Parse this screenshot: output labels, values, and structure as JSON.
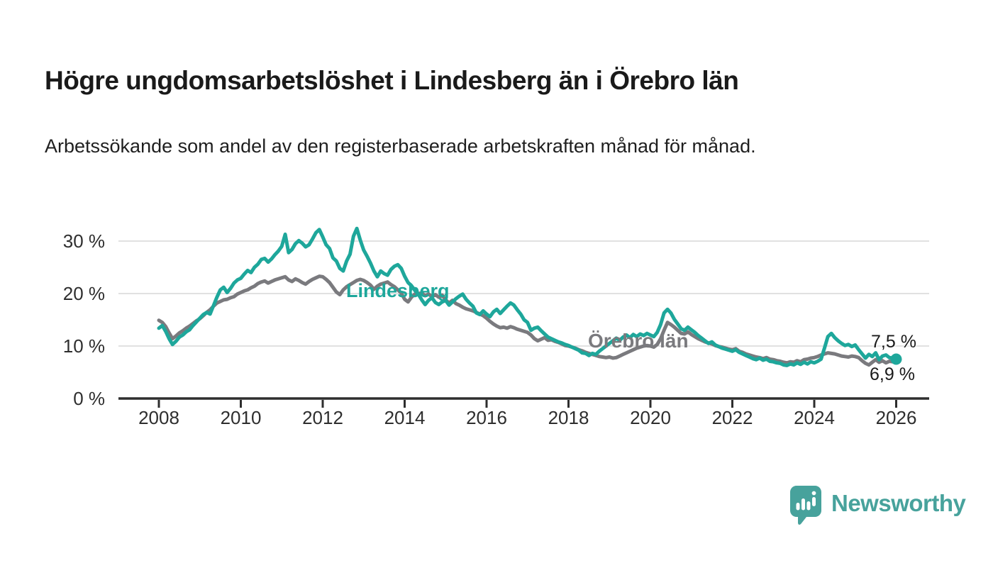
{
  "header": {
    "title": "Högre ungdomsarbetslöshet i Lindesberg än i Örebro län",
    "subtitle": "Arbetssökande som andel av den registerbaserade arbetskraften månad för månad."
  },
  "branding": {
    "name": "Newsworthy",
    "color": "#47a29c",
    "logo_icon": "speech-bubble-bar-chart"
  },
  "colors": {
    "lindesberg": "#1ea79b",
    "orebro": "#7a7a7e",
    "axis": "#2e2e2e",
    "grid": "#d7d7d7",
    "text": "#1a1a1a"
  },
  "chart_data": {
    "type": "line",
    "title": "Högre ungdomsarbetslöshet i Lindesberg än i Örebro län",
    "subtitle": "Arbetssökande som andel av den registerbaserade arbetskraften månad för månad.",
    "x_unit": "monthly, decimal years",
    "x_start": 2008.0,
    "x_step": 0.0833333,
    "x_ticks": [
      2008,
      2010,
      2012,
      2014,
      2016,
      2018,
      2020,
      2022,
      2024,
      2026
    ],
    "y_ticks": [
      0,
      10,
      20,
      30
    ],
    "y_tick_suffix": " %",
    "ylim": [
      0,
      34.5
    ],
    "xlim": [
      2007.0,
      2026.8
    ],
    "grid": true,
    "legend_position": "inline-labels",
    "series": [
      {
        "name": "Lindesberg",
        "color": "#1ea79b",
        "end_label": "7,5 %",
        "end_value": 7.5,
        "values": [
          13.4,
          13.9,
          12.8,
          11.4,
          10.3,
          10.9,
          11.7,
          12.1,
          12.7,
          13.1,
          13.9,
          14.6,
          15.3,
          16.0,
          16.4,
          16.1,
          17.7,
          19.3,
          20.7,
          21.2,
          20.2,
          21.0,
          22.0,
          22.6,
          22.9,
          23.7,
          24.4,
          24.0,
          25.0,
          25.6,
          26.5,
          26.7,
          26.0,
          26.6,
          27.4,
          28.1,
          29.0,
          31.3,
          27.8,
          28.4,
          29.5,
          30.1,
          29.6,
          28.9,
          29.3,
          30.4,
          31.6,
          32.2,
          30.8,
          29.3,
          28.6,
          26.8,
          26.2,
          24.8,
          24.3,
          26.2,
          27.5,
          30.9,
          32.4,
          30.2,
          28.3,
          27.1,
          25.8,
          24.3,
          23.2,
          24.3,
          23.8,
          23.5,
          24.6,
          25.2,
          25.5,
          24.8,
          23.3,
          22.1,
          21.5,
          20.6,
          19.9,
          18.8,
          17.9,
          18.7,
          19.2,
          18.3,
          17.9,
          18.4,
          18.7,
          17.8,
          18.4,
          19.0,
          19.5,
          19.9,
          18.9,
          18.2,
          17.6,
          16.3,
          16.0,
          16.7,
          16.1,
          15.6,
          16.5,
          17.0,
          16.2,
          16.9,
          17.6,
          18.2,
          17.8,
          16.9,
          16.1,
          15.0,
          14.5,
          13.0,
          13.4,
          13.6,
          12.9,
          12.3,
          11.7,
          11.4,
          11.1,
          10.8,
          10.6,
          10.3,
          10.1,
          9.8,
          9.5,
          9.2,
          8.7,
          8.6,
          8.2,
          8.6,
          8.4,
          9.0,
          9.5,
          10.0,
          10.5,
          11.0,
          11.5,
          11.1,
          11.7,
          12.1,
          11.6,
          12.2,
          11.8,
          12.3,
          12.0,
          12.4,
          12.1,
          11.8,
          12.6,
          14.1,
          16.3,
          17.0,
          16.3,
          15.1,
          14.2,
          13.3,
          13.0,
          13.6,
          13.1,
          12.6,
          12.0,
          11.5,
          11.0,
          10.5,
          10.8,
          10.2,
          9.9,
          9.6,
          9.4,
          9.2,
          9.0,
          9.3,
          8.8,
          8.5,
          8.2,
          7.9,
          7.6,
          7.4,
          7.7,
          7.3,
          7.5,
          7.1,
          7.0,
          6.8,
          6.7,
          6.4,
          6.3,
          6.6,
          6.4,
          6.8,
          6.5,
          6.9,
          6.6,
          7.0,
          6.8,
          7.1,
          7.5,
          9.6,
          11.8,
          12.4,
          11.6,
          11.0,
          10.5,
          10.1,
          10.3,
          9.9,
          10.2,
          9.3,
          8.5,
          7.7,
          8.4,
          8.0,
          8.7,
          7.4,
          8.1,
          8.3,
          7.8,
          7.7,
          7.5
        ]
      },
      {
        "name": "Örebro län",
        "color": "#7a7a7e",
        "end_label": "6,9 %",
        "end_value": 6.9,
        "values": [
          14.9,
          14.5,
          13.7,
          12.5,
          11.4,
          11.9,
          12.5,
          12.9,
          13.4,
          13.8,
          14.3,
          14.8,
          15.2,
          15.8,
          16.4,
          16.9,
          17.6,
          18.2,
          18.5,
          18.8,
          18.9,
          19.2,
          19.4,
          19.9,
          20.2,
          20.5,
          20.7,
          21.1,
          21.4,
          21.9,
          22.2,
          22.4,
          22.0,
          22.3,
          22.6,
          22.8,
          23.0,
          23.2,
          22.6,
          22.3,
          22.8,
          22.5,
          22.1,
          21.8,
          22.3,
          22.7,
          23.0,
          23.3,
          23.2,
          22.7,
          22.1,
          21.2,
          20.3,
          19.8,
          20.7,
          21.3,
          21.7,
          22.1,
          22.5,
          22.7,
          22.5,
          22.1,
          21.6,
          20.8,
          21.4,
          21.8,
          22.0,
          22.2,
          21.7,
          21.3,
          20.7,
          20.1,
          18.9,
          18.4,
          19.3,
          19.9,
          20.0,
          20.1,
          19.6,
          19.9,
          19.4,
          19.8,
          19.3,
          19.7,
          18.8,
          18.2,
          18.7,
          18.1,
          17.8,
          17.4,
          17.1,
          16.9,
          16.7,
          16.4,
          16.1,
          15.8,
          15.3,
          14.7,
          14.2,
          13.8,
          13.5,
          13.6,
          13.4,
          13.7,
          13.5,
          13.2,
          13.0,
          12.8,
          12.6,
          12.1,
          11.4,
          11.0,
          11.3,
          11.6,
          11.1,
          11.2,
          10.9,
          10.7,
          10.4,
          10.1,
          10.0,
          9.8,
          9.6,
          9.3,
          9.1,
          8.8,
          8.6,
          8.4,
          8.2,
          8.0,
          7.9,
          7.8,
          7.9,
          7.7,
          7.8,
          8.1,
          8.4,
          8.7,
          9.0,
          9.3,
          9.6,
          9.8,
          10.0,
          10.1,
          10.0,
          9.8,
          10.3,
          11.4,
          13.0,
          14.5,
          14.1,
          13.6,
          13.0,
          12.4,
          12.3,
          12.7,
          12.2,
          11.8,
          11.4,
          11.1,
          10.8,
          10.6,
          10.4,
          10.1,
          9.9,
          9.8,
          9.6,
          9.4,
          9.3,
          9.5,
          9.0,
          8.8,
          8.5,
          8.3,
          8.1,
          7.9,
          7.8,
          7.6,
          7.8,
          7.5,
          7.4,
          7.2,
          7.1,
          6.9,
          6.8,
          7.0,
          6.9,
          7.2,
          7.0,
          7.4,
          7.5,
          7.7,
          7.8,
          8.0,
          8.3,
          8.5,
          8.7,
          8.6,
          8.5,
          8.3,
          8.1,
          8.0,
          7.9,
          8.1,
          8.0,
          7.8,
          7.2,
          6.7,
          6.4,
          6.9,
          7.4,
          6.9,
          7.2,
          6.8,
          7.1,
          7.0,
          6.9
        ]
      }
    ]
  }
}
